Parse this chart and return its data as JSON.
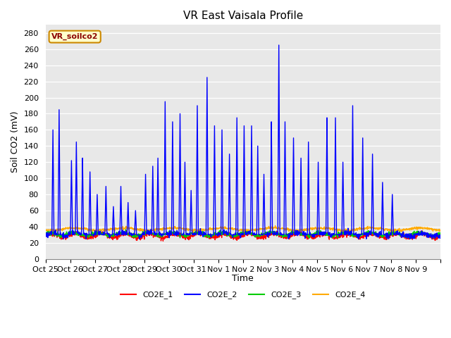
{
  "title": "VR East Vaisala Profile",
  "ylabel": "Soil CO2 (mV)",
  "xlabel": "Time",
  "legend_label": "VR_soilco2",
  "series_labels": [
    "CO2E_1",
    "CO2E_2",
    "CO2E_3",
    "CO2E_4"
  ],
  "series_colors": [
    "#ff0000",
    "#0000ff",
    "#00cc00",
    "#ffaa00"
  ],
  "ylim": [
    0,
    290
  ],
  "yticks": [
    0,
    20,
    40,
    60,
    80,
    100,
    120,
    140,
    160,
    180,
    200,
    220,
    240,
    260,
    280
  ],
  "bg_color": "#e8e8e8",
  "fig_color": "#ffffff",
  "x_start": 25.0,
  "x_end": 41.0,
  "xtick_positions": [
    25,
    26,
    27,
    28,
    29,
    30,
    31,
    32,
    33,
    34,
    35,
    36,
    37,
    38,
    39,
    40,
    41
  ],
  "xtick_labels": [
    "Oct 25",
    "Oct 26",
    "Oct 27",
    "Oct 28",
    "Oct 29",
    "Oct 30",
    "Oct 31",
    "Nov 1",
    "Nov 2",
    "Nov 3",
    "Nov 4",
    "Nov 5",
    "Nov 6",
    "Nov 7",
    "Nov 8",
    "Nov 9",
    ""
  ],
  "linewidth": 1.0,
  "spike_times": [
    25.3,
    25.55,
    26.05,
    26.25,
    26.5,
    26.8,
    27.1,
    27.45,
    27.75,
    28.05,
    28.35,
    28.65,
    29.05,
    29.35,
    29.55,
    29.85,
    30.15,
    30.45,
    30.65,
    30.9,
    31.15,
    31.55,
    31.85,
    32.15,
    32.45,
    32.75,
    33.05,
    33.35,
    33.6,
    33.85,
    34.15,
    34.45,
    34.7,
    35.05,
    35.35,
    35.65,
    36.05,
    36.4,
    36.75,
    37.05,
    37.45,
    37.85,
    38.25,
    38.65,
    39.05
  ],
  "spike_heights": [
    160,
    185,
    122,
    145,
    125,
    108,
    80,
    90,
    65,
    90,
    70,
    60,
    105,
    115,
    125,
    195,
    170,
    180,
    120,
    85,
    190,
    225,
    165,
    160,
    130,
    175,
    165,
    165,
    140,
    105,
    170,
    265,
    170,
    150,
    125,
    145,
    120,
    175,
    175,
    120,
    190,
    150,
    130,
    95,
    80
  ]
}
